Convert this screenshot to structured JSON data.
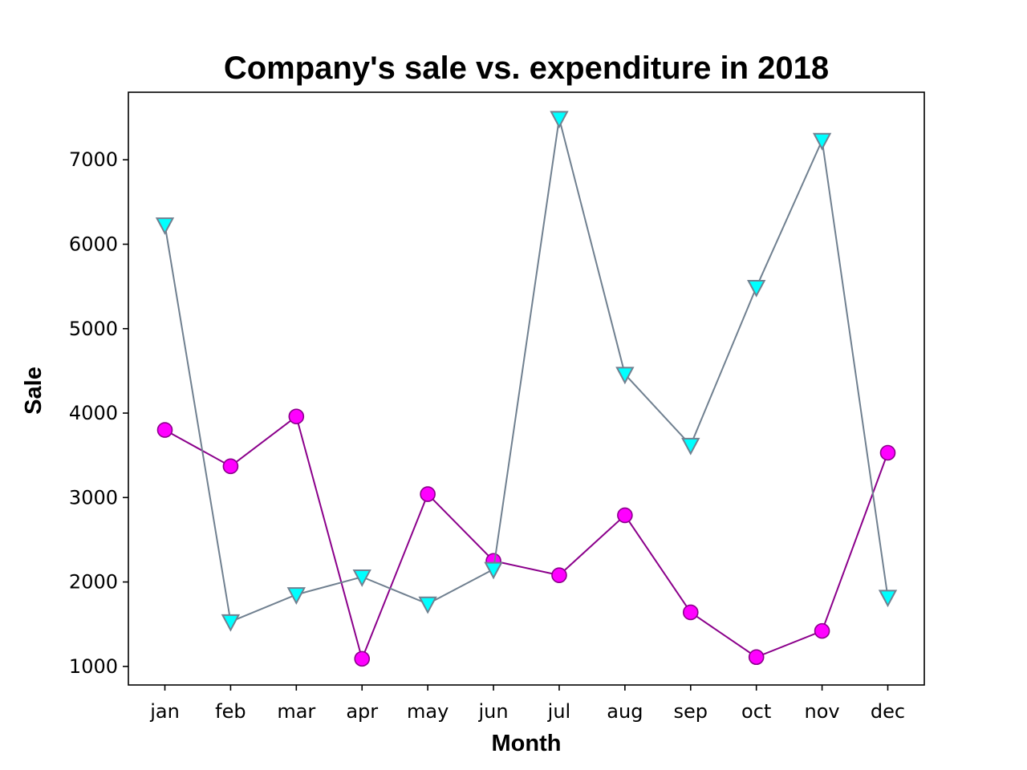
{
  "chart_data": {
    "type": "line",
    "title": "Company's sale vs. expenditure in 2018",
    "xlabel": "Month",
    "ylabel": "Sale",
    "categories": [
      "jan",
      "feb",
      "mar",
      "apr",
      "may",
      "jun",
      "jul",
      "aug",
      "sep",
      "oct",
      "nov",
      "dec"
    ],
    "ylim": [
      780,
      7800
    ],
    "yticks": [
      1000,
      2000,
      3000,
      4000,
      5000,
      6000,
      7000
    ],
    "grid": false,
    "legend": "none",
    "series": [
      {
        "values": [
          3800,
          3370,
          3960,
          1090,
          3040,
          2250,
          2080,
          2790,
          1640,
          1110,
          1420,
          3530
        ],
        "line_color": "#8b008b",
        "marker": "circle",
        "marker_fill": "#ff00ff",
        "marker_edge": "#8b008b"
      },
      {
        "values": [
          6230,
          1530,
          1850,
          2060,
          1740,
          2150,
          7490,
          4460,
          3620,
          5490,
          7230,
          1820
        ],
        "line_color": "#708090",
        "marker": "triangle-down",
        "marker_fill": "#00ffff",
        "marker_edge": "#708090"
      }
    ]
  }
}
